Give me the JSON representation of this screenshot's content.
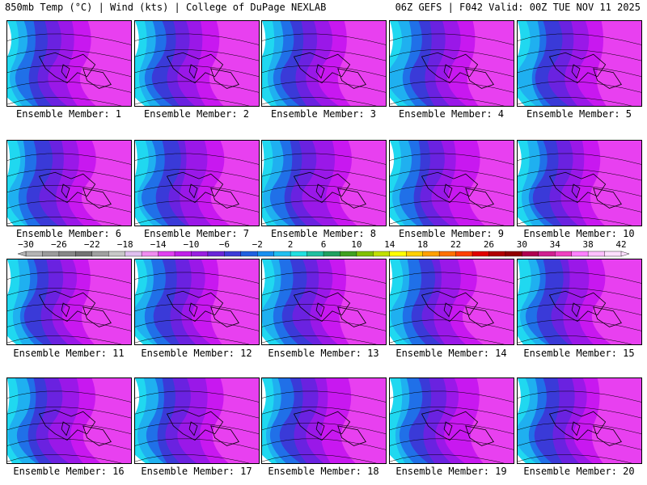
{
  "header": {
    "left": "850mb Temp (°C) | Wind (kts) | College of DuPage NEXLAB",
    "right": "06Z GEFS | F042 Valid: 00Z TUE NOV 11 2025"
  },
  "members": [
    "Ensemble Member: 1",
    "Ensemble Member: 2",
    "Ensemble Member: 3",
    "Ensemble Member: 4",
    "Ensemble Member: 5",
    "Ensemble Member: 6",
    "Ensemble Member: 7",
    "Ensemble Member: 8",
    "Ensemble Member: 9",
    "Ensemble Member: 10",
    "Ensemble Member: 11",
    "Ensemble Member: 12",
    "Ensemble Member: 13",
    "Ensemble Member: 14",
    "Ensemble Member: 15",
    "Ensemble Member: 16",
    "Ensemble Member: 17",
    "Ensemble Member: 18",
    "Ensemble Member: 19",
    "Ensemble Member: 20"
  ],
  "colorbar": {
    "labels": [
      "−30",
      "−26",
      "−22",
      "−18",
      "−14",
      "−10",
      "−6",
      "−2",
      "2",
      "6",
      "10",
      "14",
      "18",
      "22",
      "26",
      "30",
      "34",
      "38",
      "42"
    ],
    "colors": [
      "#b4b4b4",
      "#9b9b9b",
      "#878787",
      "#737373",
      "#a0a0a0",
      "#c8c8c8",
      "#e0c0f0",
      "#f08cf0",
      "#e040f0",
      "#c020e8",
      "#9a20e0",
      "#6a28d8",
      "#3c3cd8",
      "#2060e0",
      "#1890f0",
      "#20c0f0",
      "#20e0e0",
      "#20c0a0",
      "#20a060",
      "#40a020",
      "#80c000",
      "#c0e000",
      "#ffff00",
      "#ffd000",
      "#ffa000",
      "#ff7000",
      "#ff4000",
      "#e00000",
      "#b00000",
      "#900000",
      "#b00050",
      "#d02090",
      "#f040c0",
      "#ff80ff",
      "#ffc0ff",
      "#ffe0ff"
    ]
  }
}
